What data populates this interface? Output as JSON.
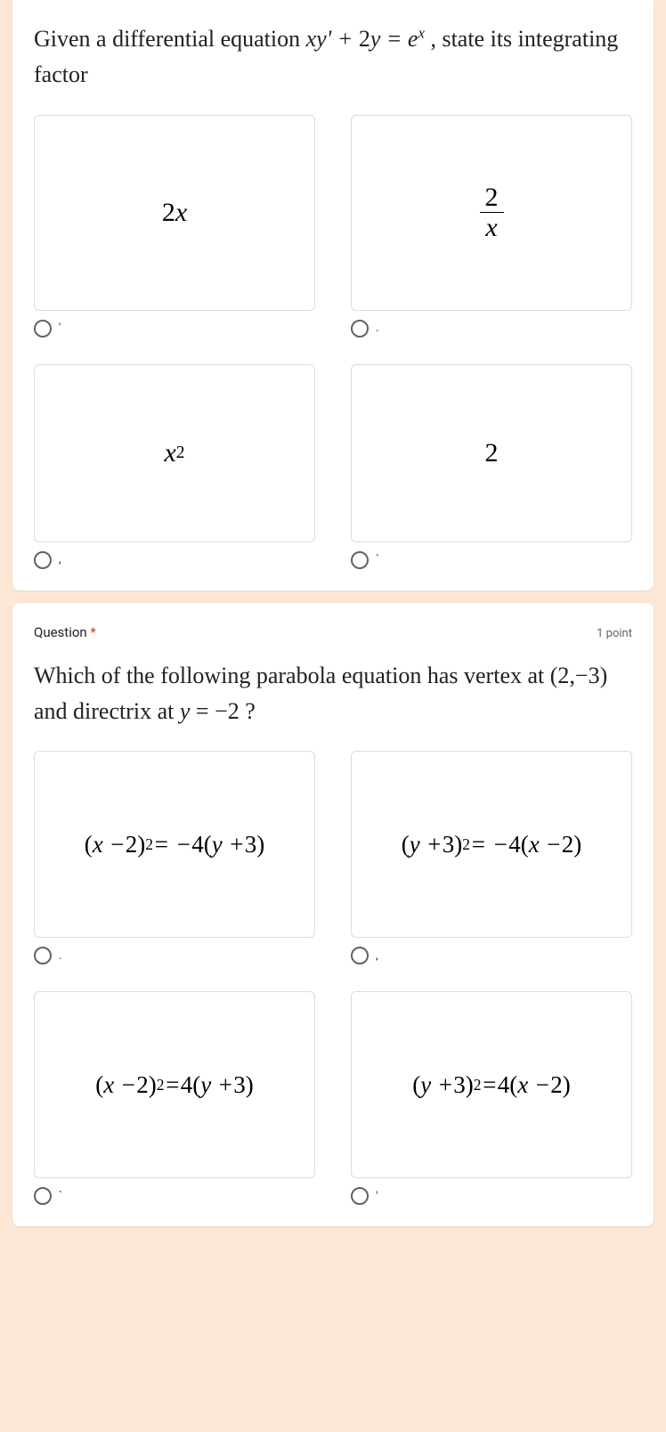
{
  "q1": {
    "prompt_html": "Given a differential equation <span class='math'>xy' + <span class='upright'>2</span>y = e<sup>x</sup></span> , state its integrating factor",
    "options": [
      {
        "html": "<span class='upright'>2</span>x",
        "marker": "'"
      },
      {
        "html": "<span class='frac'><span class='num'>2</span><span class='den'><span class='math'>x</span></span></span>",
        "marker": "."
      },
      {
        "html": "x<sup><span class='upright'>2</span></sup>",
        "marker": ","
      },
      {
        "html": "<span class='upright'>2</span>",
        "marker": "`"
      }
    ]
  },
  "q2": {
    "header": "Question",
    "required": "*",
    "points": "1 point",
    "prompt_html": "Which of the following parabola equation has vertex at <span class='math upright'>(2,&minus;3)</span> and directrix at <span class='math'>y</span> = <span class='upright'>&minus;2</span> ?",
    "options": [
      {
        "html": "<span class='upright'>(</span>x &minus; <span class='upright'>2)</span><sup><span class='upright'>2</span></sup> = &minus;<span class='upright'>4(</span>y + <span class='upright'>3)</span>",
        "marker": "."
      },
      {
        "html": "<span class='upright'>(</span>y + <span class='upright'>3)</span><sup><span class='upright'>2</span></sup> = &minus;<span class='upright'>4(</span>x &minus; <span class='upright'>2)</span>",
        "marker": ","
      },
      {
        "html": "<span class='upright'>(</span>x &minus; <span class='upright'>2)</span><sup><span class='upright'>2</span></sup> = <span class='upright'>4(</span>y + <span class='upright'>3)</span>",
        "marker": "`"
      },
      {
        "html": "<span class='upright'>(</span>y + <span class='upright'>3)</span><sup><span class='upright'>2</span></sup> = <span class='upright'>4(</span>x &minus; <span class='upright'>2)</span>",
        "marker": "'"
      }
    ]
  }
}
